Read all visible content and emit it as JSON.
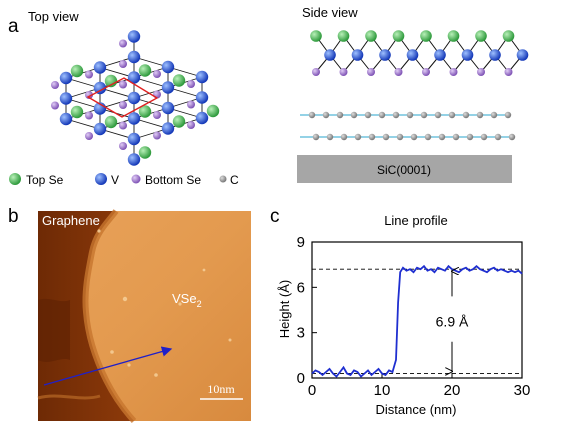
{
  "panel_a": {
    "letter": "a",
    "top_view_title": "Top view",
    "side_view_title": "Side view",
    "legend": [
      {
        "label": "Top Se",
        "color": "#3aa845"
      },
      {
        "label": "V",
        "color": "#1f4fd6"
      },
      {
        "label": "Bottom Se",
        "color": "#9467c4"
      },
      {
        "label": "C",
        "color": "#8c8c8c"
      }
    ],
    "substrate_label": "SiC(0001)",
    "colors": {
      "graphene_line": "#55b8d8",
      "unit_cell": "#e02020",
      "substrate": "#a6a6a6"
    }
  },
  "panel_b": {
    "letter": "b",
    "graphene_label": "Graphene",
    "vse2_label": "VSe",
    "vse2_subscript": "2",
    "scale_bar_label": "10nm",
    "colors": {
      "arrow": "#2020c8"
    }
  },
  "panel_c": {
    "letter": "c",
    "chart_data": {
      "type": "line",
      "title": "Line profile",
      "xlabel": "Distance (nm)",
      "ylabel": "Height (Å)",
      "xlim": [
        0,
        30
      ],
      "ylim": [
        0,
        9
      ],
      "xticks": [
        0,
        10,
        20,
        30
      ],
      "yticks": [
        0,
        3,
        6,
        9
      ],
      "reference_lines": [
        0.3,
        7.2
      ],
      "annotation": "6.9 Å",
      "annotation_x": 20,
      "series": [
        {
          "color": "#1f2fd0",
          "x": [
            0,
            0.5,
            1,
            1.5,
            2,
            2.5,
            3,
            3.5,
            4,
            4.5,
            5,
            5.5,
            6,
            6.5,
            7,
            7.5,
            8,
            8.5,
            9,
            9.5,
            10,
            10.5,
            11,
            11.5,
            12,
            12.3,
            12.6,
            13,
            13.5,
            14,
            14.5,
            15,
            15.5,
            16,
            16.5,
            17,
            17.5,
            18,
            18.5,
            19,
            19.5,
            20,
            20.5,
            21,
            21.5,
            22,
            22.5,
            23,
            23.5,
            24,
            24.5,
            25,
            25.5,
            26,
            26.5,
            27,
            27.5,
            28,
            28.5,
            29,
            29.5,
            30
          ],
          "y": [
            0.3,
            0.5,
            0.4,
            0.2,
            0.4,
            0.6,
            0.3,
            0.1,
            0.4,
            0.7,
            0.3,
            0.2,
            0.5,
            0.4,
            0.1,
            0.3,
            0.5,
            0.2,
            0.4,
            0.6,
            0.3,
            0.2,
            0.5,
            0.4,
            1.2,
            5.0,
            7.0,
            7.3,
            7.1,
            7.2,
            7.0,
            7.3,
            7.2,
            7.4,
            7.1,
            7.2,
            7.0,
            7.3,
            7.2,
            7.1,
            7.4,
            7.2,
            7.1,
            7.0,
            7.2,
            7.3,
            7.1,
            7.2,
            7.4,
            7.2,
            7.1,
            7.0,
            7.2,
            7.3,
            7.1,
            7.2,
            7.1,
            7.0,
            7.1,
            7.0,
            7.1,
            6.9
          ]
        }
      ]
    }
  }
}
